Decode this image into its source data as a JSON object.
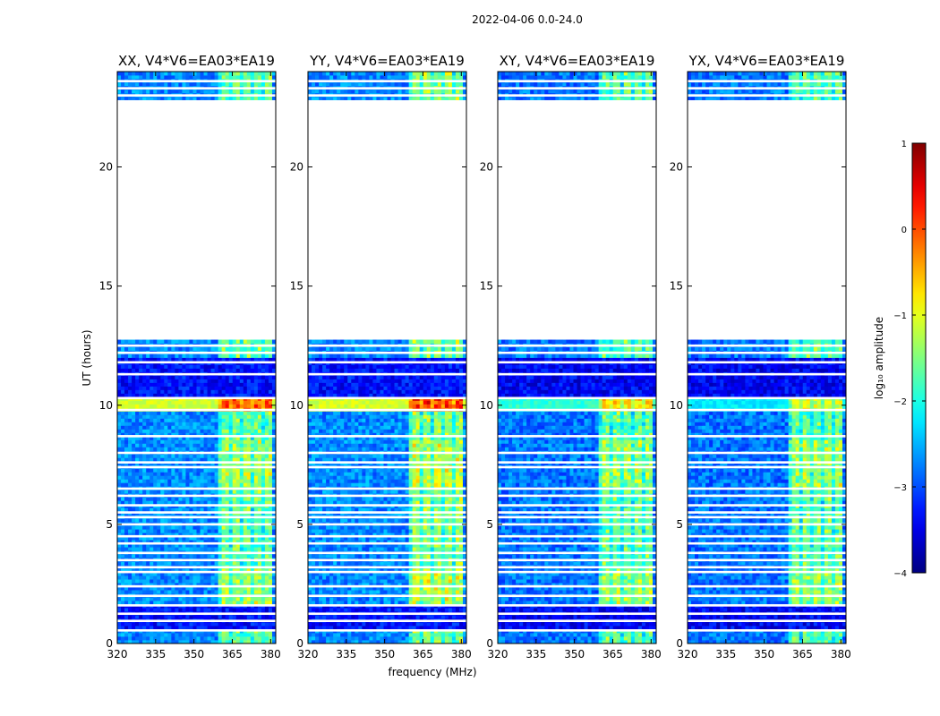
{
  "chart_data": {
    "type": "heatmap",
    "suptitle": "2022-04-06 0.0-24.0",
    "xlabel": "frequency (MHz)",
    "ylabel": "UT (hours)",
    "xlim": [
      320,
      382
    ],
    "ylim": [
      0,
      24
    ],
    "xticks": [
      320,
      335,
      350,
      365,
      380
    ],
    "yticks": [
      0,
      5,
      10,
      15,
      20
    ],
    "panels": [
      {
        "title": "XX, V4*V6=EA03*EA19",
        "channel_base": -2.7,
        "rfi_boost": 1.3,
        "band_10h": -1.1
      },
      {
        "title": "YY, V4*V6=EA03*EA19",
        "channel_base": -2.7,
        "rfi_boost": 1.5,
        "band_10h": -1.1
      },
      {
        "title": "XY, V4*V6=EA03*EA19",
        "channel_base": -2.8,
        "rfi_boost": 1.4,
        "band_10h": -1.9
      },
      {
        "title": "YX, V4*V6=EA03*EA19",
        "channel_base": -2.8,
        "rfi_boost": 1.4,
        "band_10h": -2.2
      }
    ],
    "rfi_band_mhz": [
      360,
      380
    ],
    "data_segments_hours": [
      [
        0.0,
        12.8
      ],
      [
        22.8,
        24.0
      ]
    ],
    "gap_hours": [
      12.8,
      22.8
    ],
    "colorbar": {
      "label": "log₁₀ amplitude",
      "range": [
        -4,
        1
      ],
      "ticks": [
        "1",
        "0",
        "−1",
        "−2",
        "−3",
        "−4"
      ],
      "colormap": "jet"
    }
  }
}
